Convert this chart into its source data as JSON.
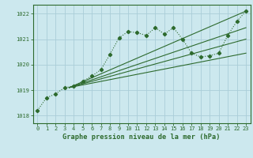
{
  "background_color": "#cce8ee",
  "grid_color": "#aacdd8",
  "line_color": "#2d6a2d",
  "title": "Graphe pression niveau de la mer (hPa)",
  "xlim": [
    -0.5,
    23.5
  ],
  "ylim": [
    1017.7,
    1022.35
  ],
  "yticks": [
    1018,
    1019,
    1020,
    1021,
    1022
  ],
  "xticks": [
    0,
    1,
    2,
    3,
    4,
    5,
    6,
    7,
    8,
    9,
    10,
    11,
    12,
    13,
    14,
    15,
    16,
    17,
    18,
    19,
    20,
    21,
    22,
    23
  ],
  "main_series": {
    "x": [
      0,
      1,
      2,
      3,
      4,
      5,
      6,
      7,
      8,
      9,
      10,
      11,
      12,
      13,
      14,
      15,
      16,
      17,
      18,
      19,
      20,
      21,
      22,
      23
    ],
    "y": [
      1018.2,
      1018.7,
      1018.85,
      1019.1,
      1019.15,
      1019.35,
      1019.55,
      1019.8,
      1020.4,
      1021.05,
      1021.3,
      1021.25,
      1021.15,
      1021.45,
      1021.2,
      1021.45,
      1021.0,
      1020.45,
      1020.3,
      1020.35,
      1020.45,
      1021.15,
      1021.7,
      1022.1
    ]
  },
  "straight_lines": [
    {
      "x0": 3.5,
      "y0": 1019.1,
      "x1": 23,
      "y1": 1022.1
    },
    {
      "x0": 3.5,
      "y0": 1019.1,
      "x1": 23,
      "y1": 1021.45
    },
    {
      "x0": 3.5,
      "y0": 1019.1,
      "x1": 23,
      "y1": 1021.0
    },
    {
      "x0": 3.5,
      "y0": 1019.1,
      "x1": 23,
      "y1": 1020.45
    }
  ]
}
